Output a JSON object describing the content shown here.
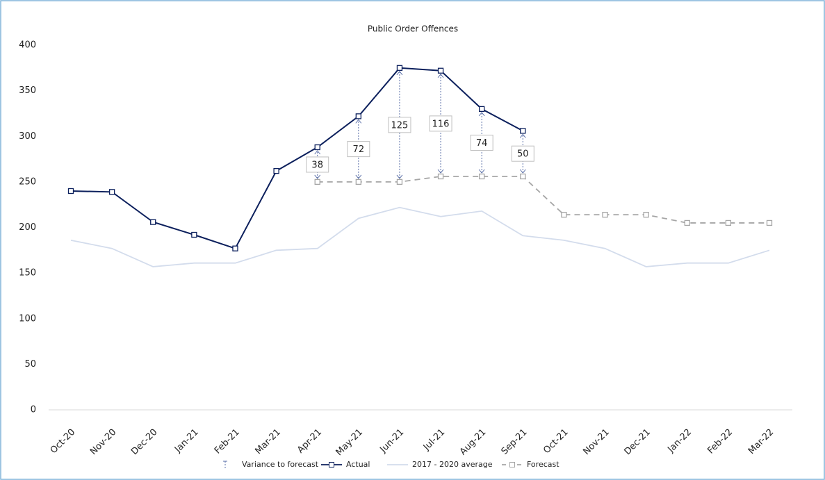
{
  "chart_data": {
    "type": "line",
    "title": "Public Order Offences",
    "categories": [
      "Oct-20",
      "Nov-20",
      "Dec-20",
      "Jan-21",
      "Feb-21",
      "Mar-21",
      "Apr-21",
      "May-21",
      "Jun-21",
      "Jul-21",
      "Aug-21",
      "Sep-21",
      "Oct-21",
      "Nov-21",
      "Dec-21",
      "Jan-22",
      "Feb-22",
      "Mar-22"
    ],
    "series": [
      {
        "name": "Variance to forecast",
        "color": "#5a6fa8",
        "style": "variance",
        "values": [
          null,
          null,
          null,
          null,
          null,
          null,
          38,
          72,
          125,
          116,
          74,
          50,
          null,
          null,
          null,
          null,
          null,
          null
        ]
      },
      {
        "name": "Actual",
        "color": "#0b1f5c",
        "style": "solid-marker",
        "values": [
          240,
          239,
          206,
          192,
          177,
          262,
          288,
          322,
          375,
          372,
          330,
          306,
          null,
          null,
          null,
          null,
          null,
          null
        ]
      },
      {
        "name": "2017 - 2020 average",
        "color": "#d3dcec",
        "style": "solid",
        "values": [
          186,
          177,
          157,
          161,
          161,
          175,
          177,
          210,
          222,
          212,
          218,
          191,
          186,
          177,
          157,
          161,
          161,
          175
        ]
      },
      {
        "name": "Forecast",
        "color": "#a6a6a6",
        "style": "dashed-marker",
        "values": [
          null,
          null,
          null,
          null,
          null,
          null,
          250,
          250,
          250,
          256,
          256,
          256,
          214,
          214,
          214,
          205,
          205,
          205
        ]
      }
    ],
    "ylim": [
      0,
      400
    ],
    "yticks": [
      0,
      50,
      100,
      150,
      200,
      250,
      300,
      350,
      400
    ],
    "grid": false
  }
}
